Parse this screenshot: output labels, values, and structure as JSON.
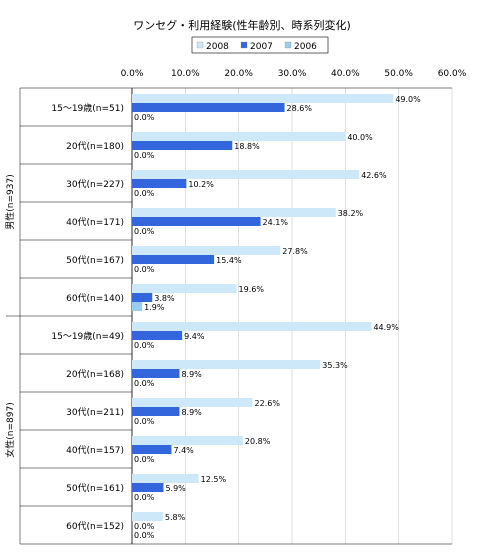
{
  "chart_data": {
    "type": "bar",
    "orientation": "horizontal",
    "title": "ワンセグ・利用経験(性年齢別、時系列変化)",
    "legend_position": "top",
    "grid": true,
    "xlim": [
      0,
      60
    ],
    "x_ticks": [
      "0.0%",
      "10.0%",
      "20.0%",
      "30.0%",
      "40.0%",
      "50.0%",
      "60.0%"
    ],
    "groups": [
      {
        "label": "男性(n=937)",
        "categories": [
          "15～19歳(n=51)",
          "20代(n=180)",
          "30代(n=227)",
          "40代(n=171)",
          "50代(n=167)",
          "60代(n=140)"
        ]
      },
      {
        "label": "女性(n=897)",
        "categories": [
          "15～19歳(n=49)",
          "20代(n=168)",
          "30代(n=211)",
          "40代(n=157)",
          "50代(n=161)",
          "60代(n=152)"
        ]
      }
    ],
    "categories": [
      "15～19歳(n=51)",
      "20代(n=180)",
      "30代(n=227)",
      "40代(n=171)",
      "50代(n=167)",
      "60代(n=140)",
      "15～19歳(n=49)",
      "20代(n=168)",
      "30代(n=211)",
      "40代(n=157)",
      "50代(n=161)",
      "60代(n=152)"
    ],
    "series": [
      {
        "name": "2008",
        "color": "#cce8f9",
        "values": [
          49.0,
          40.0,
          42.6,
          38.2,
          27.8,
          19.6,
          44.9,
          35.3,
          22.6,
          20.8,
          12.5,
          5.8
        ]
      },
      {
        "name": "2007",
        "color": "#3366dd",
        "values": [
          28.6,
          18.8,
          10.2,
          24.1,
          15.4,
          3.8,
          9.4,
          8.9,
          8.9,
          7.4,
          5.9,
          0.0
        ]
      },
      {
        "name": "2006",
        "color": "#99ccee",
        "values": [
          0.0,
          0.0,
          0.0,
          0.0,
          0.0,
          1.9,
          0.0,
          0.0,
          0.0,
          0.0,
          0.0,
          0.0
        ]
      }
    ]
  }
}
